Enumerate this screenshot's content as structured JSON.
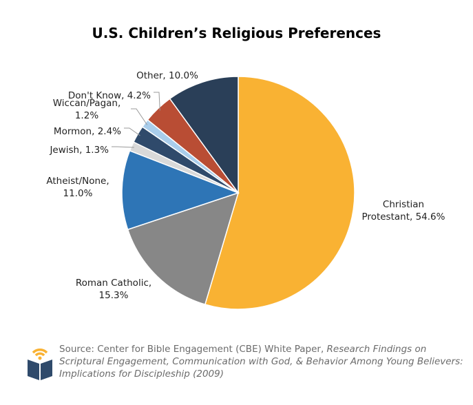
{
  "chart_data": {
    "type": "pie",
    "title": "U.S. Children’s Religious Preferences",
    "start_angle": "top, clockwise",
    "slices": [
      {
        "label": "Christian Protestant",
        "value": 54.6,
        "display": [
          "Christian",
          "Protestant, 54.6%"
        ],
        "color": "#F9B233"
      },
      {
        "label": "Roman Catholic",
        "value": 15.3,
        "display": [
          "Roman Catholic,",
          "15.3%"
        ],
        "color": "#878787"
      },
      {
        "label": "Atheist/None",
        "value": 11.0,
        "display": [
          "Atheist/None,",
          "11.0%"
        ],
        "color": "#2E75B6"
      },
      {
        "label": "Jewish",
        "value": 1.3,
        "display": [
          "Jewish, 1.3%"
        ],
        "color": "#D9D9D9"
      },
      {
        "label": "Mormon",
        "value": 2.4,
        "display": [
          "Mormon, 2.4%"
        ],
        "color": "#2F4A6B"
      },
      {
        "label": "Wiccan/Pagan",
        "value": 1.2,
        "display": [
          "Wiccan/Pagan,",
          "1.2%"
        ],
        "color": "#A9CDEB"
      },
      {
        "label": "Don't Know",
        "value": 4.2,
        "display": [
          "Don't Know, 4.2%"
        ],
        "color": "#B94D34"
      },
      {
        "label": "Other",
        "value": 10.0,
        "display": [
          "Other, 10.0%"
        ],
        "color": "#2A3F58"
      }
    ]
  },
  "source": {
    "prefix": "Source: Center for Bible Engagement (CBE) White Paper, ",
    "italic": "Research Findings on Scriptural Engagement, Communication with God, & Behavior Among Young Believers: Implications for Discipleship (2009)"
  },
  "logo": {
    "colors": {
      "book": "#2F4A6B",
      "waves": "#F9B233"
    }
  }
}
